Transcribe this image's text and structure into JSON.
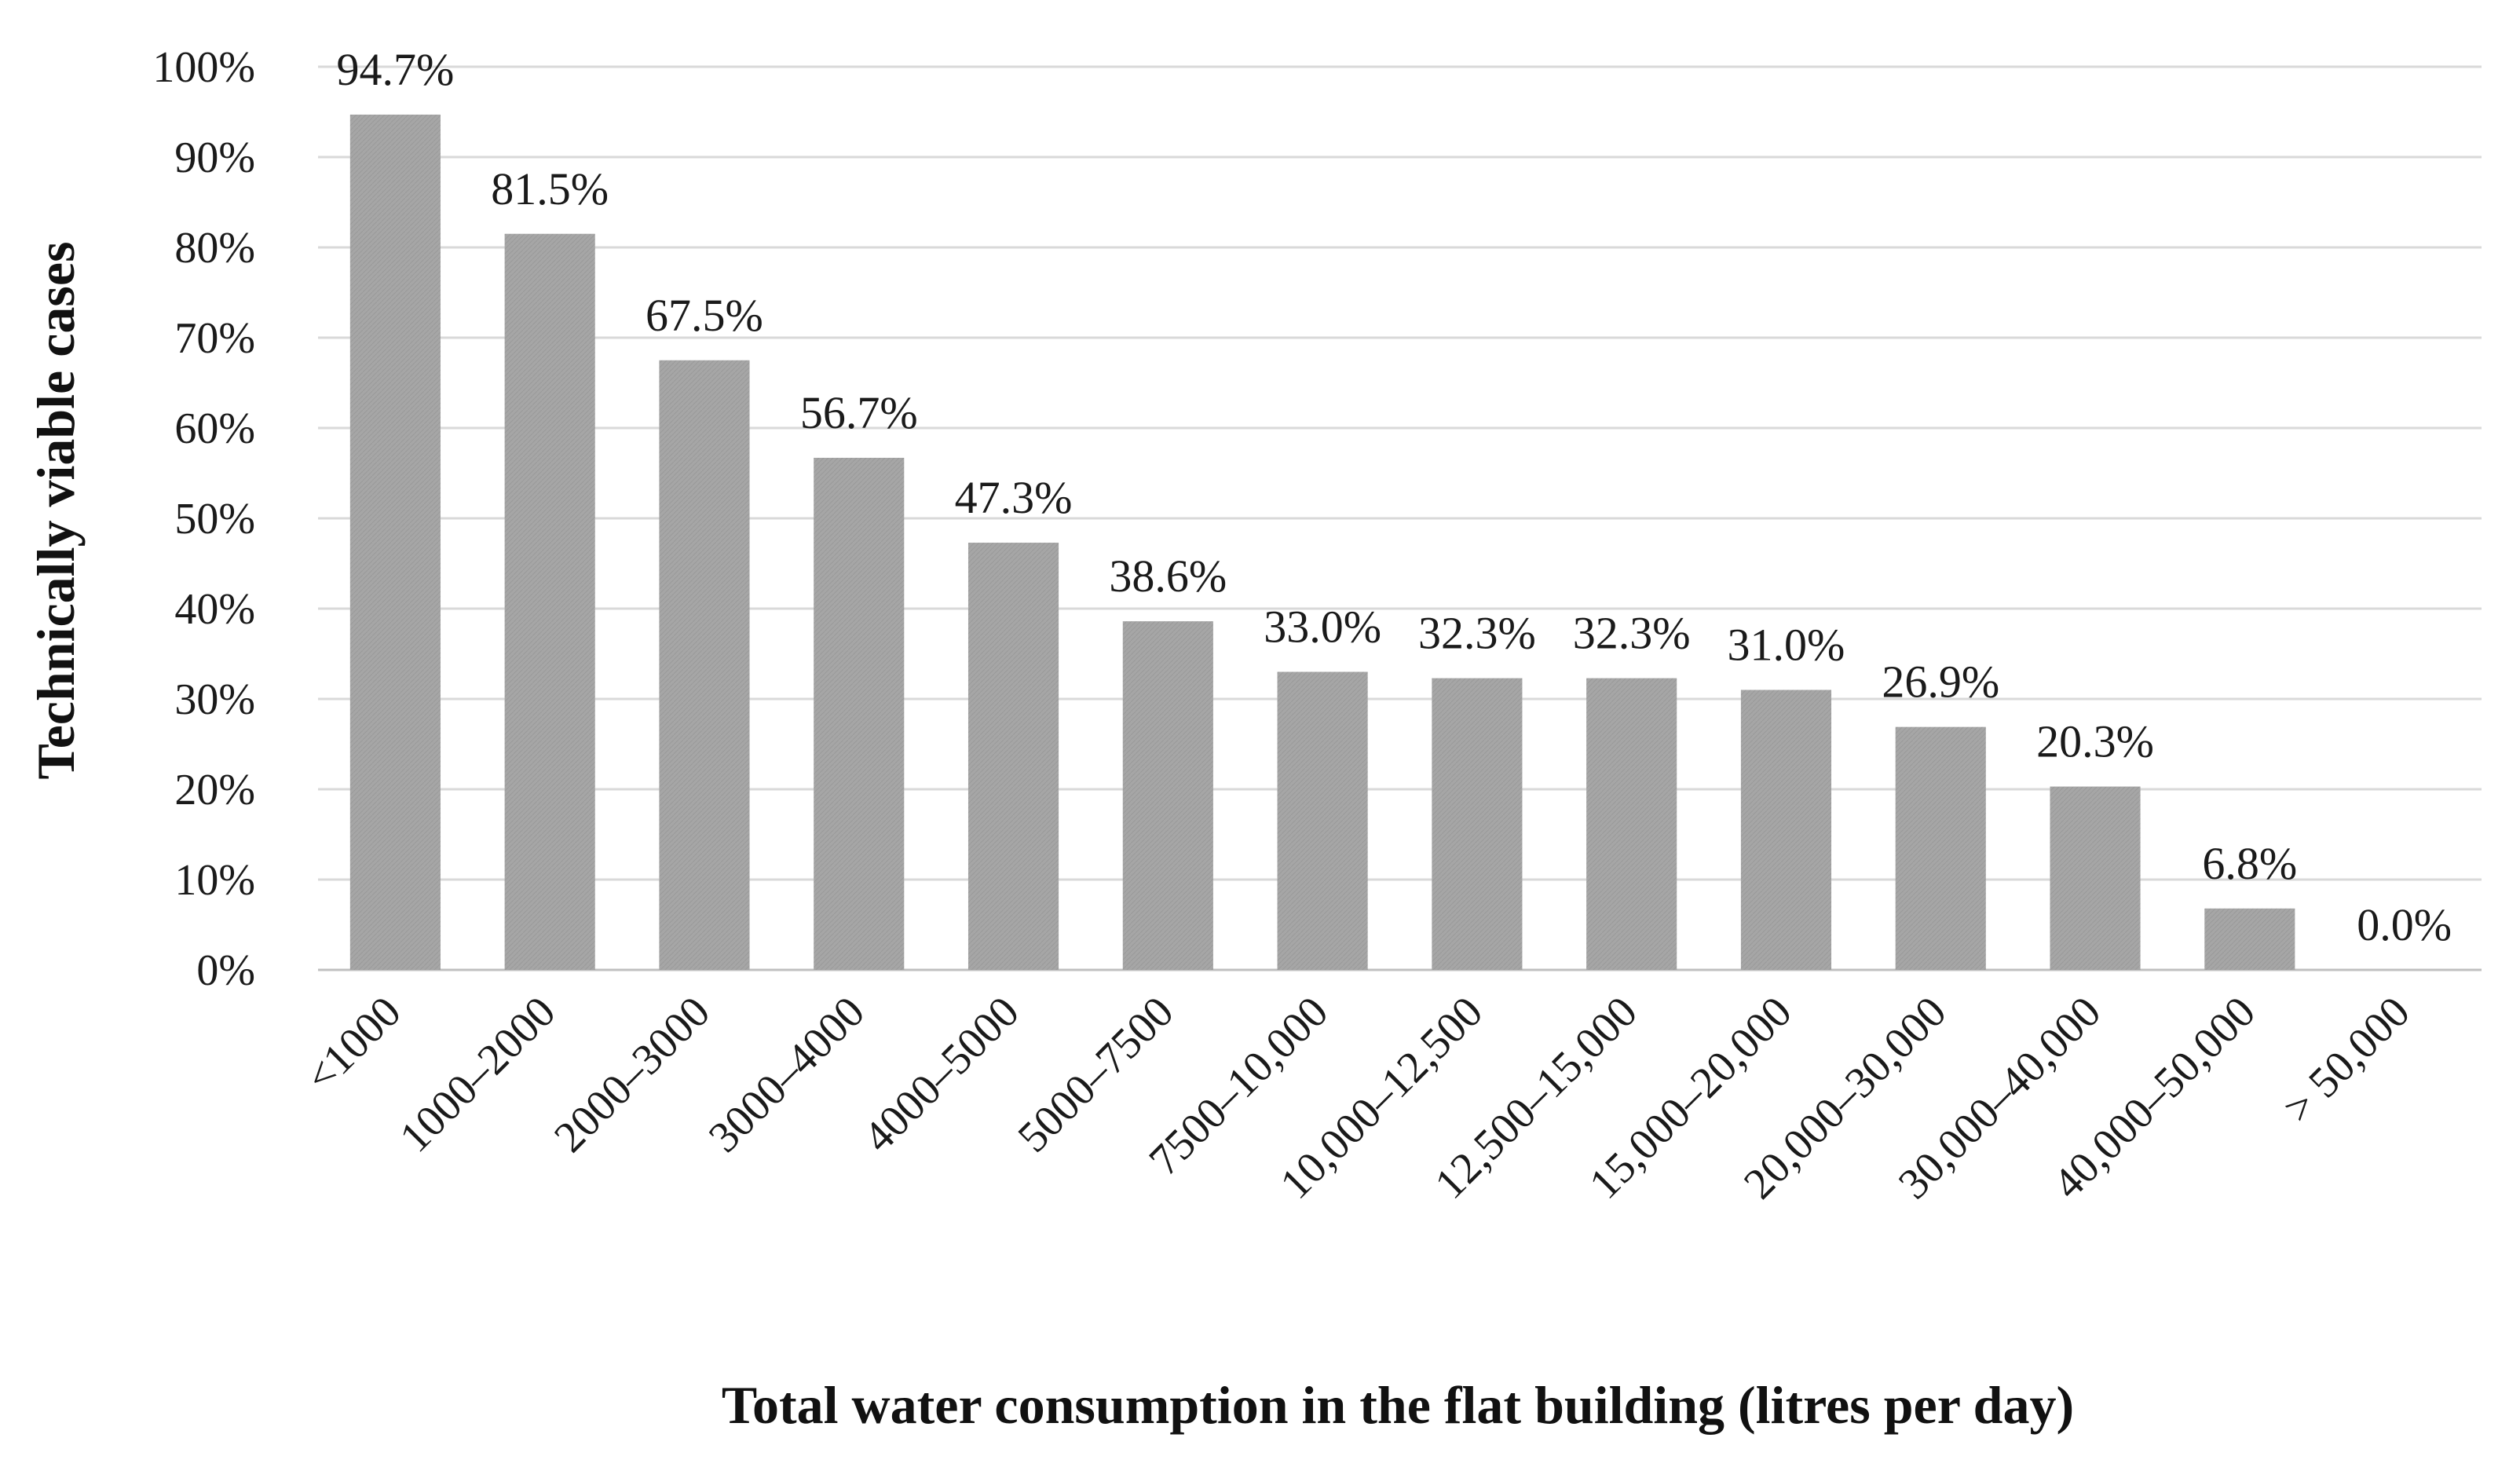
{
  "chart_data": {
    "type": "bar",
    "title": "",
    "xlabel": "Total water consumption in the flat building (litres per day)",
    "ylabel": "Technically viable cases",
    "ylim": [
      0,
      100
    ],
    "yticks": [
      "0%",
      "10%",
      "20%",
      "30%",
      "40%",
      "50%",
      "60%",
      "70%",
      "80%",
      "90%",
      "100%"
    ],
    "categories": [
      "<1000",
      "1000–2000",
      "2000–3000",
      "3000–4000",
      "4000–5000",
      "5000–7500",
      "7500–10,000",
      "10,000–12,500",
      "12,500–15,000",
      "15,000–20,000",
      "20,000–30,000",
      "30,000–40,000",
      "40,000–50,000",
      "> 50,000"
    ],
    "values": [
      94.7,
      81.5,
      67.5,
      56.7,
      47.3,
      38.6,
      33.0,
      32.3,
      32.3,
      31.0,
      26.9,
      20.3,
      6.8,
      0.0
    ],
    "data_labels": [
      "94.7%",
      "81.5%",
      "67.5%",
      "56.7%",
      "47.3%",
      "38.6%",
      "33.0%",
      "32.3%",
      "32.3%",
      "31.0%",
      "26.9%",
      "20.3%",
      "6.8%",
      "0.0%"
    ],
    "colors": {
      "bar": "#a6a6a6",
      "grid": "#d9d9d9",
      "text": "#1a1a1a"
    },
    "grid": true,
    "legend": "none"
  }
}
